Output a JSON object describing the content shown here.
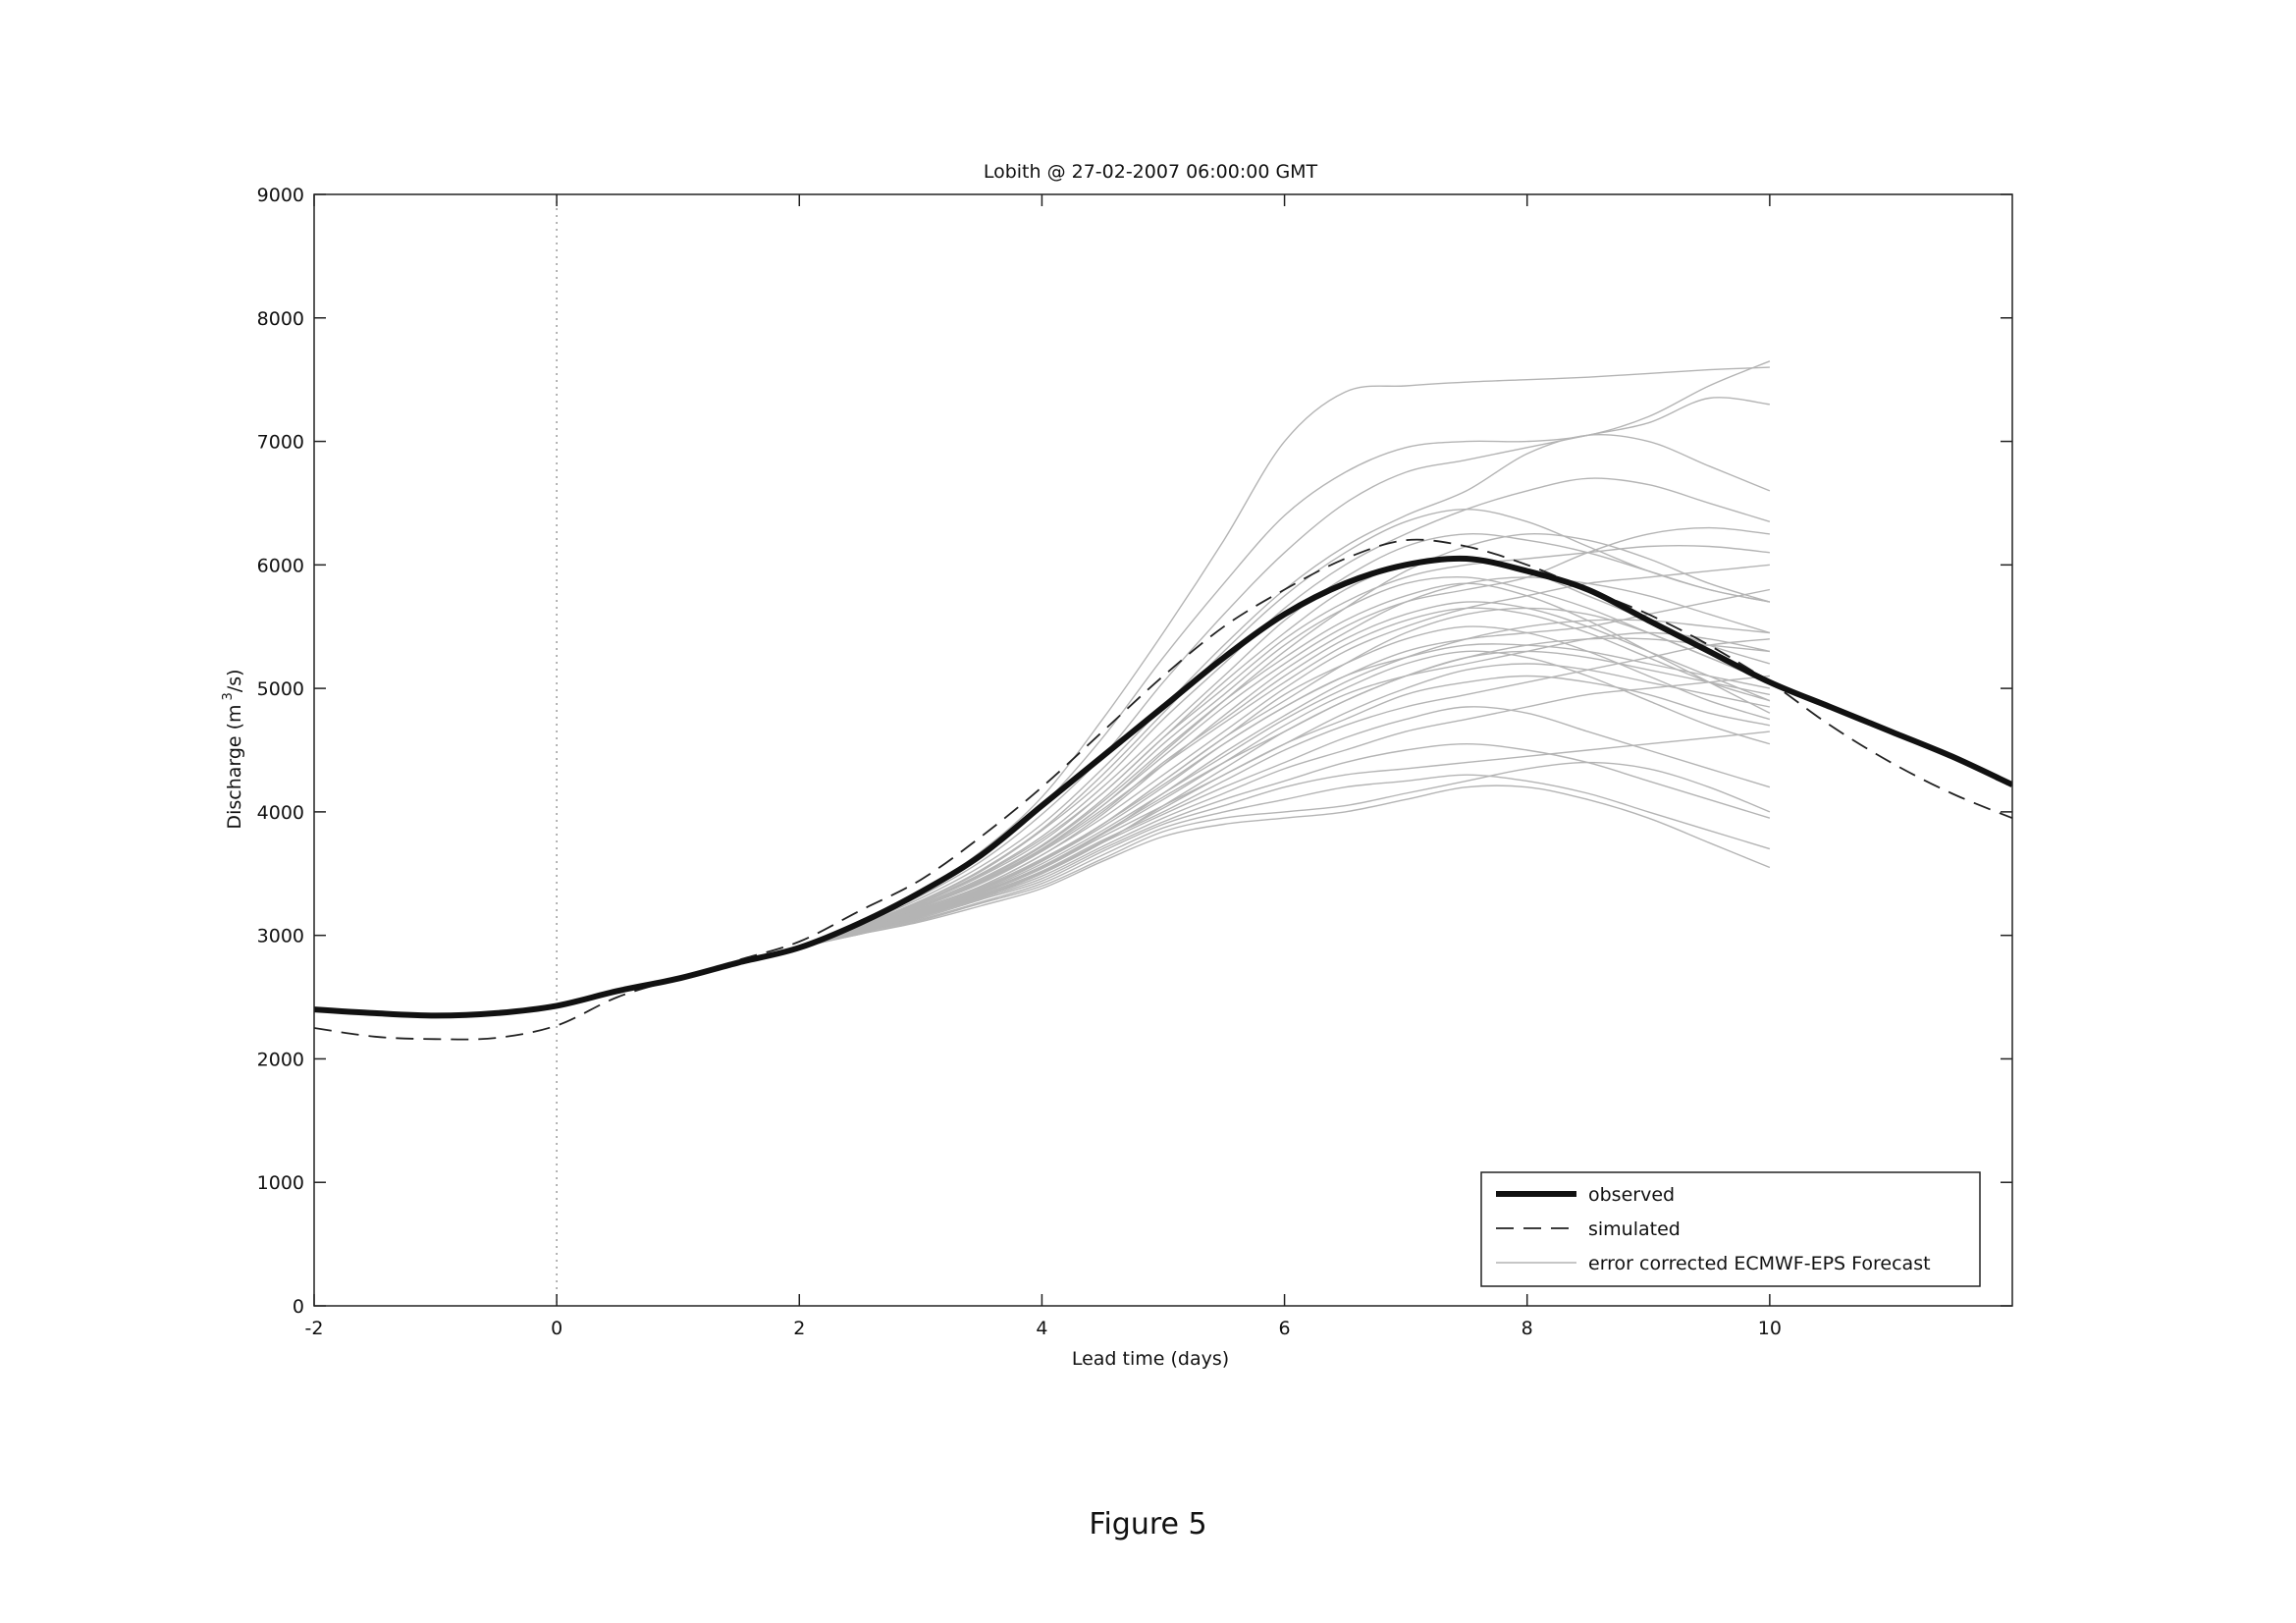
{
  "figure_caption": "Figure 5",
  "chart_data": {
    "type": "line",
    "title": "Lobith @ 27-02-2007 06:00:00 GMT",
    "xlabel": "Lead time (days)",
    "ylabel_main": "Discharge (m",
    "ylabel_sup": "3",
    "ylabel_tail": "/s)",
    "xlim": [
      -2,
      12
    ],
    "ylim": [
      0,
      9000
    ],
    "x_ticks": [
      -2,
      0,
      2,
      4,
      6,
      8,
      10
    ],
    "y_ticks": [
      0,
      1000,
      2000,
      3000,
      4000,
      5000,
      6000,
      7000,
      8000,
      9000
    ],
    "vertical_reference_x": 0,
    "grid": false,
    "legend_position": "lower-right",
    "legend": [
      "observed",
      "simulated",
      "error corrected ECMWF-EPS Forecast"
    ],
    "colors": {
      "observed": "#111111",
      "simulated": "#222222",
      "ensemble": "#b4b4b4",
      "reference": "#9a9a9a"
    },
    "series": [
      {
        "name": "observed",
        "x": [
          -2,
          -1.5,
          -1,
          -0.5,
          0,
          0.5,
          1,
          1.5,
          2,
          2.5,
          3,
          3.5,
          4,
          4.5,
          5,
          5.5,
          6,
          6.5,
          7,
          7.5,
          8,
          8.5,
          9,
          9.5,
          10,
          10.5,
          11,
          11.5,
          12
        ],
        "y": [
          2400,
          2370,
          2350,
          2370,
          2430,
          2550,
          2650,
          2780,
          2900,
          3100,
          3350,
          3650,
          4050,
          4450,
          4850,
          5250,
          5600,
          5850,
          6000,
          6050,
          5950,
          5800,
          5550,
          5300,
          5050,
          4850,
          4650,
          4450,
          4220
        ]
      },
      {
        "name": "simulated",
        "x": [
          -2,
          -1.5,
          -1,
          -0.5,
          0,
          0.5,
          1,
          1.5,
          2,
          2.5,
          3,
          3.5,
          4,
          4.5,
          5,
          5.5,
          6,
          6.5,
          7,
          7.5,
          8,
          8.5,
          9,
          9.5,
          10,
          10.5,
          11,
          11.5,
          12
        ],
        "y": [
          2250,
          2180,
          2160,
          2170,
          2270,
          2500,
          2650,
          2800,
          2950,
          3200,
          3450,
          3800,
          4200,
          4650,
          5100,
          5500,
          5800,
          6050,
          6200,
          6150,
          6000,
          5800,
          5600,
          5350,
          5050,
          4700,
          4400,
          4150,
          3950
        ]
      }
    ],
    "ensemble": {
      "name": "error corrected ECMWF-EPS Forecast",
      "x": [
        0,
        1,
        2,
        2.5,
        3,
        3.5,
        4,
        4.5,
        5,
        5.5,
        6,
        6.5,
        7,
        7.5,
        8,
        8.5,
        9,
        9.5,
        10
      ],
      "members": [
        [
          2430,
          2650,
          2900,
          3120,
          3350,
          3680,
          4120,
          4750,
          5450,
          6200,
          7000,
          7400,
          7450,
          7480,
          7500,
          7520,
          7550,
          7580,
          7600
        ],
        [
          2430,
          2650,
          2900,
          3100,
          3330,
          3640,
          4050,
          4600,
          5250,
          5850,
          6400,
          6750,
          6950,
          7000,
          7000,
          7050,
          7200,
          7450,
          7650
        ],
        [
          2430,
          2650,
          2900,
          3100,
          3320,
          3600,
          3980,
          4450,
          5050,
          5600,
          6100,
          6500,
          6750,
          6850,
          6950,
          7050,
          7150,
          7350,
          7300
        ],
        [
          2430,
          2650,
          2900,
          3090,
          3300,
          3560,
          3900,
          4350,
          4850,
          5350,
          5800,
          6150,
          6400,
          6600,
          6900,
          7050,
          7000,
          6800,
          6600
        ],
        [
          2430,
          2650,
          2900,
          3080,
          3280,
          3520,
          3850,
          4250,
          4750,
          5200,
          5650,
          6000,
          6250,
          6450,
          6600,
          6700,
          6650,
          6500,
          6350
        ],
        [
          2430,
          2650,
          2900,
          3080,
          3270,
          3500,
          3800,
          4200,
          4650,
          5100,
          5550,
          5900,
          6150,
          6250,
          6200,
          6100,
          5950,
          5800,
          5700
        ],
        [
          2430,
          2650,
          2900,
          3070,
          3260,
          3480,
          3760,
          4150,
          4600,
          5050,
          5450,
          5800,
          6000,
          6050,
          5950,
          5750,
          5550,
          5350,
          5200
        ],
        [
          2430,
          2650,
          2900,
          3070,
          3250,
          3460,
          3730,
          4100,
          4550,
          4950,
          5350,
          5650,
          5850,
          5900,
          5800,
          5650,
          5450,
          5250,
          5050
        ],
        [
          2430,
          2650,
          2900,
          3060,
          3240,
          3440,
          3700,
          4050,
          4450,
          4850,
          5200,
          5500,
          5700,
          5800,
          5900,
          6100,
          6250,
          6300,
          6250
        ],
        [
          2430,
          2650,
          2900,
          3060,
          3230,
          3420,
          3680,
          4000,
          4400,
          4750,
          5100,
          5400,
          5600,
          5700,
          5650,
          5500,
          5300,
          5100,
          4900
        ],
        [
          2430,
          2650,
          2900,
          3050,
          3220,
          3400,
          3650,
          3950,
          4300,
          4650,
          5000,
          5300,
          5500,
          5650,
          5750,
          5850,
          5900,
          5950,
          6000
        ],
        [
          2430,
          2650,
          2900,
          3050,
          3210,
          3390,
          3620,
          3900,
          4250,
          4600,
          4950,
          5200,
          5400,
          5500,
          5450,
          5300,
          5100,
          4900,
          4750
        ],
        [
          2430,
          2650,
          2900,
          3050,
          3200,
          3370,
          3600,
          3880,
          4200,
          4550,
          4850,
          5100,
          5300,
          5400,
          5450,
          5500,
          5600,
          5700,
          5800
        ],
        [
          2430,
          2650,
          2900,
          3040,
          3190,
          3360,
          3580,
          3850,
          4150,
          4450,
          4750,
          5000,
          5200,
          5300,
          5250,
          5100,
          4900,
          4700,
          4550
        ],
        [
          2430,
          2650,
          2900,
          3040,
          3180,
          3350,
          3560,
          3820,
          4100,
          4400,
          4700,
          4950,
          5100,
          5200,
          5300,
          5400,
          5450,
          5400,
          5300
        ],
        [
          2430,
          2650,
          2900,
          3040,
          3180,
          3340,
          3540,
          3800,
          4050,
          4300,
          4550,
          4800,
          5000,
          5150,
          5200,
          5150,
          5050,
          4950,
          4850
        ],
        [
          2430,
          2650,
          2900,
          3030,
          3170,
          3330,
          3520,
          3770,
          4000,
          4250,
          4500,
          4700,
          4850,
          4950,
          5050,
          5150,
          5250,
          5350,
          5400
        ],
        [
          2430,
          2650,
          2900,
          3030,
          3160,
          3320,
          3500,
          3750,
          3980,
          4200,
          4400,
          4600,
          4750,
          4850,
          4800,
          4650,
          4500,
          4350,
          4200
        ],
        [
          2430,
          2650,
          2900,
          3030,
          3160,
          3310,
          3480,
          3720,
          3950,
          4150,
          4350,
          4500,
          4650,
          4750,
          4850,
          4950,
          5000,
          5050,
          5100
        ],
        [
          2430,
          2650,
          2900,
          3020,
          3150,
          3300,
          3460,
          3700,
          3920,
          4100,
          4250,
          4400,
          4500,
          4550,
          4500,
          4400,
          4250,
          4100,
          3950
        ],
        [
          2430,
          2650,
          2900,
          3020,
          3140,
          3290,
          3440,
          3680,
          3900,
          4050,
          4200,
          4300,
          4350,
          4400,
          4450,
          4500,
          4550,
          4600,
          4650
        ],
        [
          2430,
          2650,
          2900,
          3020,
          3130,
          3270,
          3420,
          3650,
          3870,
          4000,
          4100,
          4200,
          4250,
          4300,
          4250,
          4150,
          4000,
          3850,
          3700
        ],
        [
          2430,
          2650,
          2900,
          3010,
          3120,
          3260,
          3400,
          3620,
          3840,
          3950,
          4000,
          4050,
          4150,
          4250,
          4350,
          4400,
          4350,
          4200,
          4000
        ],
        [
          2430,
          2650,
          2900,
          3010,
          3110,
          3240,
          3380,
          3600,
          3800,
          3900,
          3950,
          4000,
          4100,
          4200,
          4200,
          4100,
          3950,
          3750,
          3550
        ],
        [
          2430,
          2650,
          2900,
          3080,
          3280,
          3530,
          3860,
          4300,
          4800,
          5300,
          5750,
          6100,
          6350,
          6450,
          6350,
          6150,
          5950,
          5800,
          5700
        ],
        [
          2430,
          2650,
          2900,
          3070,
          3260,
          3490,
          3780,
          4150,
          4600,
          5000,
          5400,
          5700,
          5900,
          6000,
          6050,
          6100,
          6150,
          6150,
          6100
        ],
        [
          2430,
          2650,
          2900,
          3060,
          3240,
          3450,
          3720,
          4080,
          4500,
          4900,
          5250,
          5550,
          5750,
          5850,
          5750,
          5550,
          5300,
          5050,
          4800
        ],
        [
          2430,
          2650,
          2900,
          3050,
          3230,
          3430,
          3690,
          4020,
          4380,
          4720,
          5050,
          5350,
          5550,
          5650,
          5600,
          5450,
          5250,
          5050,
          4900
        ],
        [
          2430,
          2650,
          2900,
          3040,
          3200,
          3380,
          3610,
          3900,
          4220,
          4550,
          4850,
          5100,
          5250,
          5350,
          5350,
          5300,
          5200,
          5100,
          5000
        ],
        [
          2430,
          2650,
          2900,
          3030,
          3180,
          3350,
          3560,
          3830,
          4120,
          4400,
          4650,
          4900,
          5100,
          5250,
          5300,
          5250,
          5150,
          5050,
          4950
        ],
        [
          2430,
          2650,
          2900,
          3020,
          3160,
          3320,
          3510,
          3760,
          4030,
          4300,
          4550,
          4750,
          4950,
          5050,
          5100,
          5050,
          4950,
          4800,
          4700
        ],
        [
          2430,
          2650,
          2900,
          3060,
          3230,
          3440,
          3700,
          4050,
          4480,
          4900,
          5300,
          5650,
          5950,
          6150,
          6250,
          6200,
          6050,
          5850,
          5700
        ],
        [
          2430,
          2650,
          2900,
          3050,
          3210,
          3400,
          3650,
          3980,
          4380,
          4780,
          5150,
          5450,
          5700,
          5850,
          5900,
          5850,
          5750,
          5600,
          5450
        ],
        [
          2430,
          2650,
          2900,
          3040,
          3190,
          3370,
          3600,
          3900,
          4250,
          4600,
          4900,
          5200,
          5450,
          5600,
          5650,
          5600,
          5450,
          5250,
          5050
        ],
        [
          2430,
          2650,
          2900,
          3030,
          3170,
          3340,
          3550,
          3820,
          4150,
          4480,
          4780,
          5050,
          5250,
          5400,
          5500,
          5550,
          5550,
          5500,
          5450
        ],
        [
          2430,
          2650,
          2900,
          3020,
          3150,
          3310,
          3500,
          3750,
          4050,
          4350,
          4650,
          4900,
          5100,
          5250,
          5350,
          5400,
          5400,
          5350,
          5300
        ]
      ]
    }
  }
}
